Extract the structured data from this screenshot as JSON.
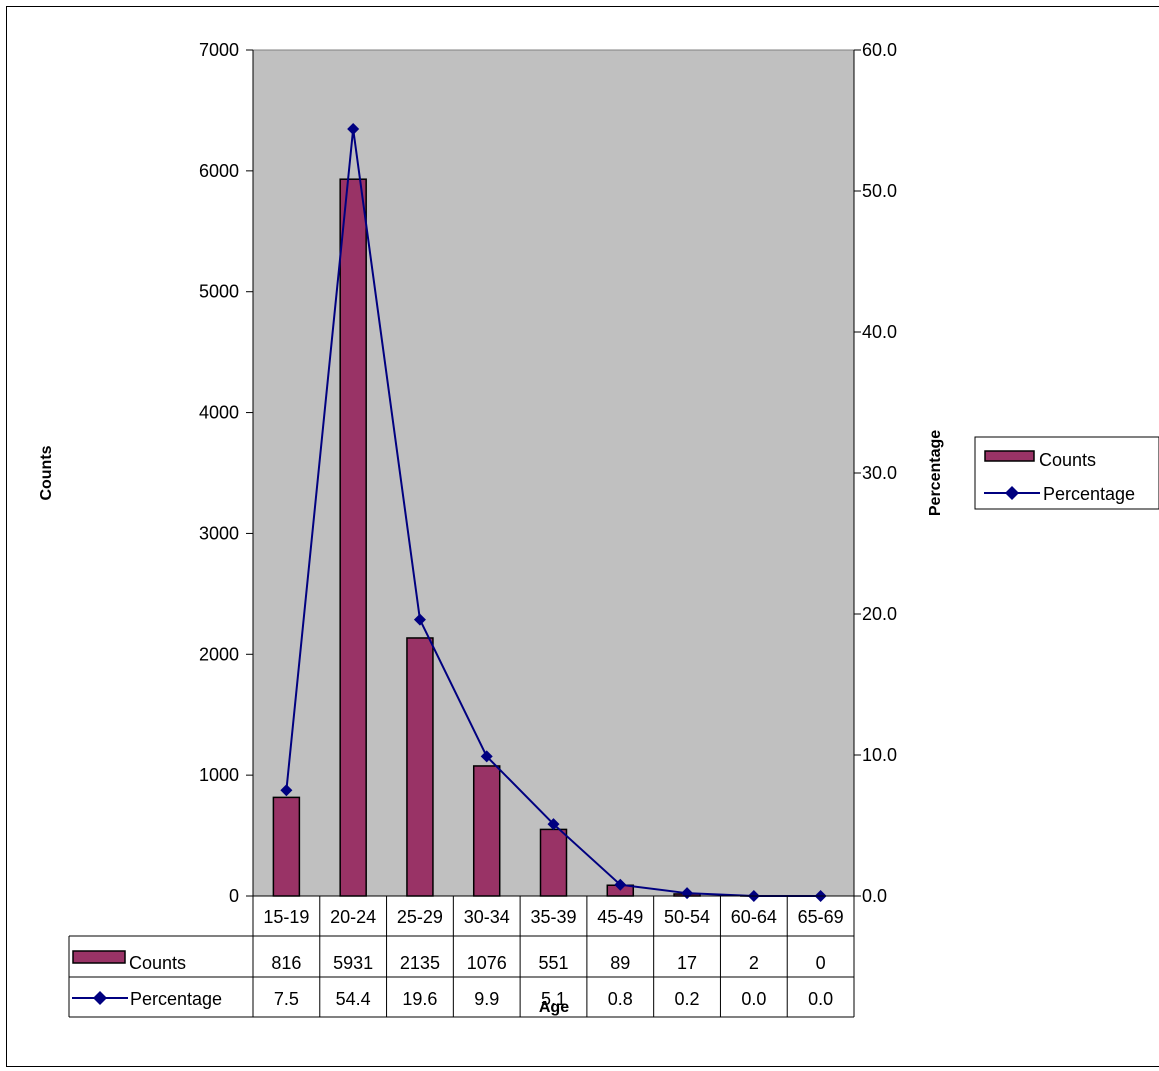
{
  "chart_data": {
    "type": "bar",
    "categories": [
      "15-19",
      "20-24",
      "25-29",
      "30-34",
      "35-39",
      "45-49",
      "50-54",
      "60-64",
      "65-69"
    ],
    "series": [
      {
        "name": "Counts",
        "type": "bar",
        "axis": "left",
        "values": [
          816,
          5931,
          2135,
          1076,
          551,
          89,
          17,
          2,
          0
        ],
        "color": "#993366"
      },
      {
        "name": "Percentage",
        "type": "line",
        "axis": "right",
        "values": [
          7.5,
          54.4,
          19.6,
          9.9,
          5.1,
          0.8,
          0.2,
          0.0,
          0.0
        ],
        "color": "#000080"
      }
    ],
    "table_values": {
      "Counts": [
        "816",
        "5931",
        "2135",
        "1076",
        "551",
        "89",
        "17",
        "2",
        "0"
      ],
      "Percentage": [
        "7.5",
        "54.4",
        "19.6",
        "9.9",
        "5.1",
        "0.8",
        "0.2",
        "0.0",
        "0.0"
      ]
    },
    "xlabel": "Age",
    "ylabel": "Counts",
    "y2label": "Percentage",
    "ylim": [
      0,
      7000
    ],
    "y2lim": [
      0,
      60
    ],
    "yticks": [
      "0",
      "1000",
      "2000",
      "3000",
      "4000",
      "5000",
      "6000",
      "7000"
    ],
    "y2ticks": [
      "0.0",
      "10.0",
      "20.0",
      "30.0",
      "40.0",
      "50.0",
      "60.0"
    ],
    "legend": {
      "position": "right",
      "entries": [
        "Counts",
        "Percentage"
      ]
    },
    "grid": false,
    "plot_background": "#c0c0c0"
  }
}
